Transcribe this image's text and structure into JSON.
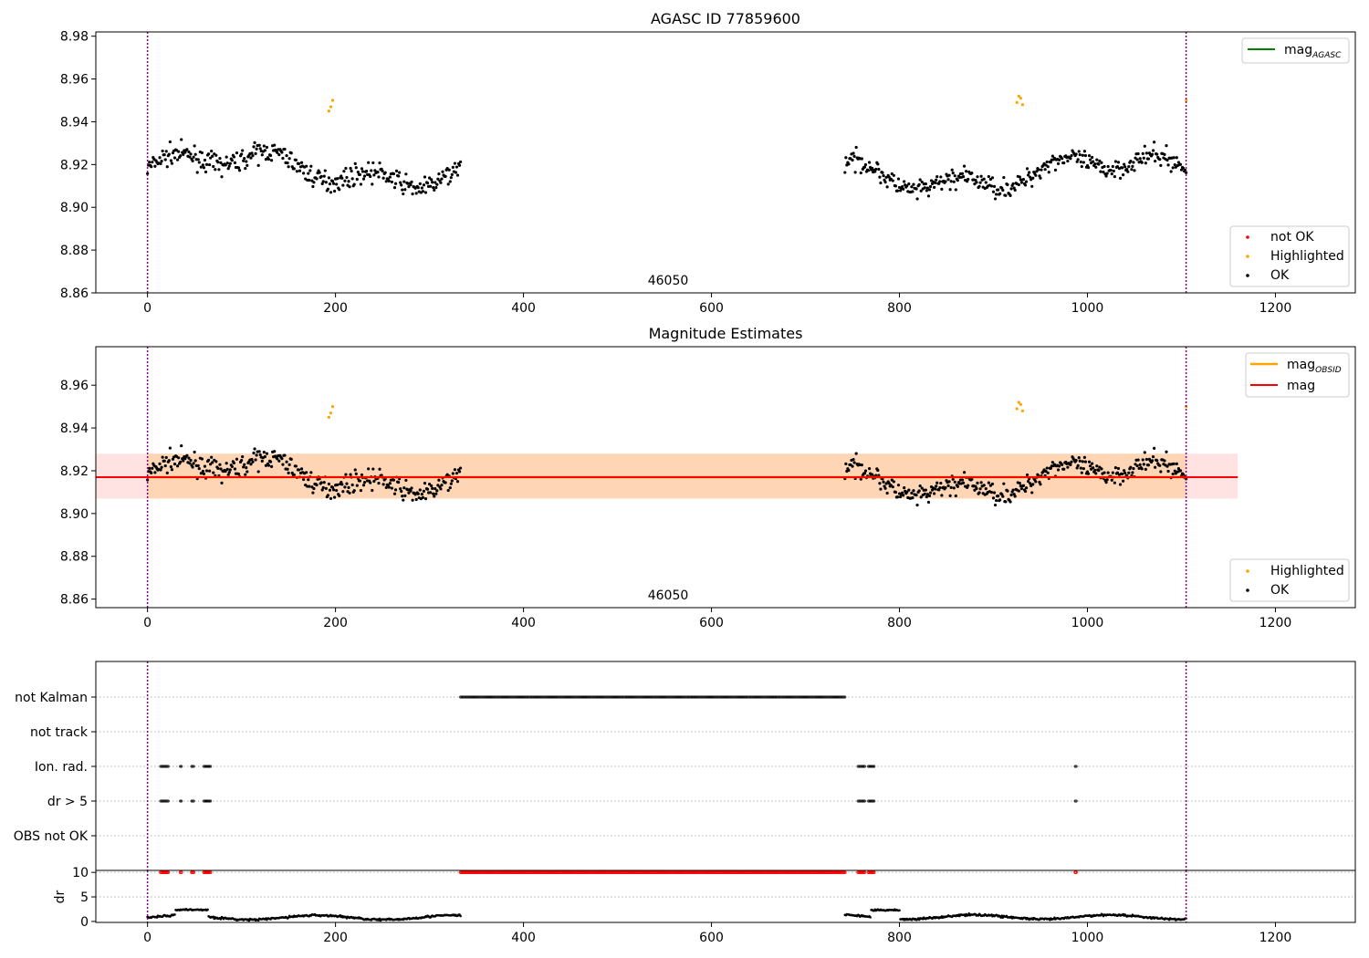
{
  "figure": {
    "title": "AGASC ID 77859600",
    "panel2_title": "Magnitude Estimates",
    "obsid_label": "46050"
  },
  "legends": {
    "agasc_line": "mag",
    "agasc_line_sub": "AGASC",
    "obsid_line": "mag",
    "obsid_line_sub": "OBSID",
    "mag_line": "mag",
    "not_ok": "not OK",
    "highlighted": "Highlighted",
    "ok": "OK"
  },
  "colors": {
    "ok": "#000000",
    "highlighted": "#ffa500",
    "not_ok": "#ff0000",
    "agasc_line": "#008000",
    "obsid_line": "#ffa500",
    "mag_line": "#ff0000",
    "obs_boundary": "#800080"
  },
  "chart_data": [
    {
      "type": "scatter",
      "title": "AGASC ID 77859600",
      "xlim": [
        -55,
        1285
      ],
      "ylim": [
        8.86,
        8.982
      ],
      "xticks": [
        0,
        200,
        400,
        600,
        800,
        1000,
        1200
      ],
      "yticks": [
        8.86,
        8.88,
        8.9,
        8.92,
        8.94,
        8.96,
        8.98
      ],
      "grid": false,
      "legend": [
        "top-right",
        "bottom-right"
      ],
      "obs_boundaries": [
        0,
        1105
      ],
      "series": [
        {
          "name": "OK",
          "segments": [
            {
              "x_range": [
                0,
                333
              ],
              "mean": 8.918,
              "spread": 0.011
            },
            {
              "x_range": [
                742,
                1105
              ],
              "mean": 8.916,
              "spread": 0.011
            }
          ]
        },
        {
          "name": "Highlighted",
          "points": [
            [
              193,
              8.945
            ],
            [
              195,
              8.947
            ],
            [
              197,
              8.95
            ],
            [
              925,
              8.949
            ],
            [
              927,
              8.952
            ],
            [
              929,
              8.951
            ],
            [
              931,
              8.948
            ],
            [
              1105,
              8.95
            ]
          ]
        },
        {
          "name": "not OK",
          "points": []
        }
      ]
    },
    {
      "type": "scatter",
      "title": "Magnitude Estimates",
      "xlim": [
        -55,
        1285
      ],
      "ylim": [
        8.856,
        8.978
      ],
      "xticks": [
        0,
        200,
        400,
        600,
        800,
        1000,
        1200
      ],
      "yticks": [
        8.86,
        8.88,
        8.9,
        8.92,
        8.94,
        8.96
      ],
      "grid": false,
      "legend": [
        "top-right",
        "bottom-right"
      ],
      "mag": 8.917,
      "mag_band": [
        8.907,
        8.928
      ],
      "mag_band_xrange": [
        -55,
        1160
      ],
      "mag_obsid": 8.917,
      "mag_obsid_band": [
        8.907,
        8.928
      ],
      "mag_obsid_xrange": [
        0,
        1105
      ],
      "series": [
        {
          "name": "OK",
          "same_as_panel": 1
        },
        {
          "name": "Highlighted",
          "same_as_panel": 1
        }
      ]
    },
    {
      "type": "scatter",
      "xlim": [
        -55,
        1285
      ],
      "categories": [
        "not Kalman",
        "not track",
        "Ion. rad.",
        "dr > 5",
        "OBS not OK"
      ],
      "flags": {
        "not Kalman": [
          [
            333,
            742
          ]
        ],
        "not track": [],
        "Ion. rad.": [
          [
            14,
            22
          ],
          [
            35,
            36
          ],
          [
            47,
            49
          ],
          [
            60,
            67
          ],
          [
            756,
            763
          ],
          [
            767,
            773
          ],
          [
            987,
            988
          ]
        ],
        "dr > 5": [
          [
            14,
            22
          ],
          [
            35,
            36
          ],
          [
            47,
            49
          ],
          [
            60,
            67
          ],
          [
            756,
            763
          ],
          [
            767,
            773
          ],
          [
            987,
            988
          ]
        ],
        "OBS not OK": []
      },
      "grid": "horizontal dotted"
    },
    {
      "type": "scatter",
      "ylabel": "dr",
      "xlim": [
        -55,
        1285
      ],
      "ylim": [
        -0.2,
        10.4
      ],
      "xticks": [
        0,
        200,
        400,
        600,
        800,
        1000,
        1200
      ],
      "yticks": [
        0,
        5,
        10
      ],
      "series": [
        {
          "name": "dr",
          "segments": [
            {
              "x_range": [
                0,
                333
              ],
              "mean": 0.8
            },
            {
              "x_range": [
                742,
                1105
              ],
              "mean": 0.9
            }
          ],
          "elevated": [
            [
              30,
              64,
              2.4
            ],
            [
              770,
              800,
              2.3
            ]
          ]
        },
        {
          "name": "dr clipped",
          "value": 10,
          "ranges": [
            [
              14,
              22
            ],
            [
              35,
              36
            ],
            [
              47,
              49
            ],
            [
              60,
              67
            ],
            [
              333,
              742
            ],
            [
              756,
              763
            ],
            [
              767,
              773
            ],
            [
              987,
              988
            ]
          ]
        }
      ]
    }
  ]
}
